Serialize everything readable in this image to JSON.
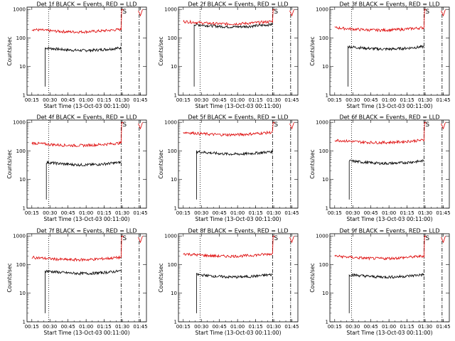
{
  "chart_data": [
    {
      "type": "line",
      "panel": "1",
      "title": "Det 1f BLACK = Events, RED = LLD",
      "xlabel": "Start Time (13-Oct-03 00:11:00)",
      "ylabel": "Counts/sec",
      "x_ticks": [
        "00:15",
        "00:30",
        "00:45",
        "01:00",
        "01:15",
        "01:30",
        "01:45"
      ],
      "y_ticks": [
        "1",
        "10",
        "100",
        "1000"
      ],
      "ylim": [
        1,
        1200
      ],
      "y_scale": "log",
      "series": [
        {
          "color": "#000000",
          "start": "00:26",
          "end": "01:29",
          "level": 45,
          "jump_level": null
        },
        {
          "color": "#dd0000",
          "start": "00:15",
          "end": "01:29",
          "level": 200,
          "jump_level": 1000
        }
      ],
      "annotation": "S"
    },
    {
      "type": "line",
      "panel": "2",
      "title": "Det 2f BLACK = Events, RED = LLD",
      "xlabel": "Start Time (13-Oct-03 00:11:00)",
      "ylabel": "Counts/sec",
      "x_ticks": [
        "00:15",
        "00:30",
        "00:45",
        "01:00",
        "01:15",
        "01:30",
        "01:45"
      ],
      "y_ticks": [
        "1",
        "10",
        "100",
        "1000"
      ],
      "ylim": [
        1,
        1200
      ],
      "y_scale": "log",
      "series": [
        {
          "color": "#000000",
          "start": "00:24",
          "end": "01:29",
          "level": 300,
          "jump_level": null
        },
        {
          "color": "#dd0000",
          "start": "00:15",
          "end": "01:29",
          "level": 380,
          "jump_level": 1000
        }
      ],
      "annotation": "S"
    },
    {
      "type": "line",
      "panel": "3",
      "title": "Det 3f BLACK = Events, RED = LLD",
      "xlabel": "Start Time (13-Oct-03 00:11:00)",
      "ylabel": "Counts/sec",
      "x_ticks": [
        "00:15",
        "00:30",
        "00:45",
        "01:00",
        "01:15",
        "01:30",
        "01:45"
      ],
      "y_ticks": [
        "1",
        "10",
        "100",
        "1000"
      ],
      "ylim": [
        1,
        1200
      ],
      "y_scale": "log",
      "series": [
        {
          "color": "#000000",
          "start": "00:26",
          "end": "01:29",
          "level": 50,
          "jump_level": null
        },
        {
          "color": "#dd0000",
          "start": "00:15",
          "end": "01:29",
          "level": 230,
          "jump_level": 1000
        }
      ],
      "annotation": "S"
    },
    {
      "type": "line",
      "panel": "4",
      "title": "Det 4f BLACK = Events, RED = LLD",
      "xlabel": "Start Time (13-Oct-03 00:11:00)",
      "ylabel": "Counts/sec",
      "x_ticks": [
        "00:15",
        "00:30",
        "00:45",
        "01:00",
        "01:15",
        "01:30",
        "01:45"
      ],
      "y_ticks": [
        "1",
        "10",
        "100",
        "1000"
      ],
      "ylim": [
        1,
        1200
      ],
      "y_scale": "log",
      "series": [
        {
          "color": "#000000",
          "start": "00:27",
          "end": "01:29",
          "level": 40,
          "jump_level": null
        },
        {
          "color": "#dd0000",
          "start": "00:15",
          "end": "01:29",
          "level": 190,
          "jump_level": 1000
        }
      ],
      "annotation": "S"
    },
    {
      "type": "line",
      "panel": "5",
      "title": "Det 5f BLACK = Events, RED = LLD",
      "xlabel": "Start Time (13-Oct-03 00:11:00)",
      "ylabel": "Counts/sec",
      "x_ticks": [
        "00:15",
        "00:30",
        "00:45",
        "01:00",
        "01:15",
        "01:30",
        "01:45"
      ],
      "y_ticks": [
        "1",
        "10",
        "100",
        "1000"
      ],
      "ylim": [
        1,
        1200
      ],
      "y_scale": "log",
      "series": [
        {
          "color": "#000000",
          "start": "00:26",
          "end": "01:29",
          "level": 95,
          "jump_level": null
        },
        {
          "color": "#dd0000",
          "start": "00:15",
          "end": "01:29",
          "level": 450,
          "jump_level": 1000
        }
      ],
      "annotation": "S"
    },
    {
      "type": "line",
      "panel": "6",
      "title": "Det 6f BLACK = Events, RED = LLD",
      "xlabel": "Start Time (13-Oct-03 00:11:00)",
      "ylabel": "Counts/sec",
      "x_ticks": [
        "00:15",
        "00:30",
        "00:45",
        "01:00",
        "01:15",
        "01:30",
        "01:45"
      ],
      "y_ticks": [
        "1",
        "10",
        "100",
        "1000"
      ],
      "ylim": [
        1,
        1200
      ],
      "y_scale": "log",
      "series": [
        {
          "color": "#000000",
          "start": "00:27",
          "end": "01:29",
          "level": 45,
          "jump_level": null
        },
        {
          "color": "#dd0000",
          "start": "00:15",
          "end": "01:29",
          "level": 240,
          "jump_level": 1000
        }
      ],
      "annotation": "S"
    },
    {
      "type": "line",
      "panel": "7",
      "title": "Det 7f BLACK = Events, RED = LLD",
      "xlabel": "Start Time (13-Oct-03 00:11:00)",
      "ylabel": "Counts/sec",
      "x_ticks": [
        "00:15",
        "00:30",
        "00:45",
        "01:00",
        "01:15",
        "01:30",
        "01:45"
      ],
      "y_ticks": [
        "1",
        "10",
        "100",
        "1000"
      ],
      "ylim": [
        1,
        1200
      ],
      "y_scale": "log",
      "series": [
        {
          "color": "#000000",
          "start": "00:26",
          "end": "01:29",
          "level": 60,
          "jump_level": null
        },
        {
          "color": "#dd0000",
          "start": "00:15",
          "end": "01:29",
          "level": 180,
          "jump_level": 1000
        }
      ],
      "annotation": "S"
    },
    {
      "type": "line",
      "panel": "8",
      "title": "Det 8f BLACK = Events, RED = LLD",
      "xlabel": "Start Time (13-Oct-03 00:11:00)",
      "ylabel": "Counts/sec",
      "x_ticks": [
        "00:15",
        "00:30",
        "00:45",
        "01:00",
        "01:15",
        "01:30",
        "01:45"
      ],
      "y_ticks": [
        "1",
        "10",
        "100",
        "1000"
      ],
      "ylim": [
        1,
        1200
      ],
      "y_scale": "log",
      "series": [
        {
          "color": "#000000",
          "start": "00:26",
          "end": "01:29",
          "level": 45,
          "jump_level": null
        },
        {
          "color": "#dd0000",
          "start": "00:15",
          "end": "01:29",
          "level": 240,
          "jump_level": 1000
        }
      ],
      "annotation": "S"
    },
    {
      "type": "line",
      "panel": "9",
      "title": "Det 9f BLACK = Events, RED = LLD",
      "xlabel": "Start Time (13-Oct-03 00:11:00)",
      "ylabel": "Counts/sec",
      "x_ticks": [
        "00:15",
        "00:30",
        "00:45",
        "01:00",
        "01:15",
        "01:30",
        "01:45"
      ],
      "y_ticks": [
        "1",
        "10",
        "100",
        "1000"
      ],
      "ylim": [
        1,
        1200
      ],
      "y_scale": "log",
      "series": [
        {
          "color": "#000000",
          "start": "00:27",
          "end": "01:29",
          "level": 45,
          "jump_level": null
        },
        {
          "color": "#dd0000",
          "start": "00:15",
          "end": "01:29",
          "level": 200,
          "jump_level": 1000
        }
      ],
      "annotation": "S"
    }
  ],
  "vertical_markers": [
    {
      "time": "00:29",
      "style": "dotted"
    },
    {
      "time": "01:29",
      "style": "dash-dot"
    },
    {
      "time": "01:44",
      "style": "dash-dot"
    }
  ]
}
